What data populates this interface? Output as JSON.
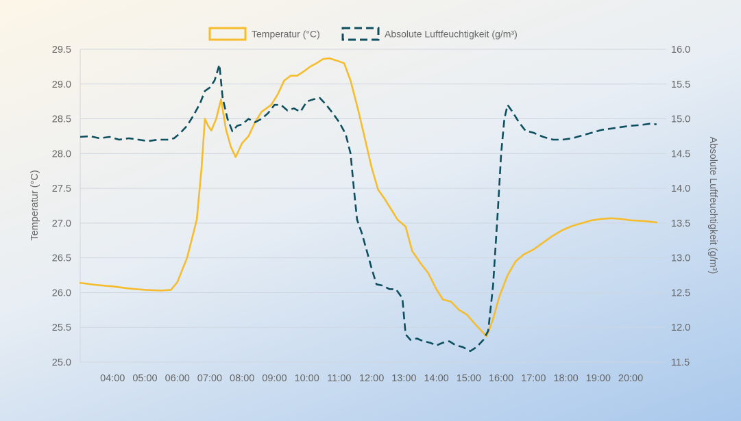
{
  "chart_data": {
    "type": "line",
    "title": "",
    "legend_position": "top",
    "grid": true,
    "colors": {
      "temperature": "#f5bd2e",
      "humidity": "#0d4f5e"
    },
    "x_axis": {
      "min": 3.0,
      "max": 21.1,
      "ticks": [
        {
          "v": 4,
          "label": "04:00"
        },
        {
          "v": 5,
          "label": "05:00"
        },
        {
          "v": 6,
          "label": "06:00"
        },
        {
          "v": 7,
          "label": "07:00"
        },
        {
          "v": 8,
          "label": "08:00"
        },
        {
          "v": 9,
          "label": "09:00"
        },
        {
          "v": 10,
          "label": "10:00"
        },
        {
          "v": 11,
          "label": "11:00"
        },
        {
          "v": 12,
          "label": "12:00"
        },
        {
          "v": 13,
          "label": "13:00"
        },
        {
          "v": 14,
          "label": "14:00"
        },
        {
          "v": 15,
          "label": "15:00"
        },
        {
          "v": 16,
          "label": "16:00"
        },
        {
          "v": 17,
          "label": "17:00"
        },
        {
          "v": 18,
          "label": "18:00"
        },
        {
          "v": 19,
          "label": "19:00"
        },
        {
          "v": 20,
          "label": "20:00"
        }
      ]
    },
    "y_left": {
      "label": "Temperatur (°C)",
      "min": 25.0,
      "max": 29.5,
      "ticks": [
        "25.0",
        "25.5",
        "26.0",
        "26.5",
        "27.0",
        "27.5",
        "28.0",
        "28.5",
        "29.0",
        "29.5"
      ]
    },
    "y_right": {
      "label": "Absolute Luftfeuchtigkeit (g/m³)",
      "min": 11.5,
      "max": 16.0,
      "ticks": [
        "11.5",
        "12.0",
        "12.5",
        "13.0",
        "13.5",
        "14.0",
        "14.5",
        "15.0",
        "15.5",
        "16.0"
      ]
    },
    "series": [
      {
        "name": "Temperatur (°C)",
        "axis": "left",
        "style": "solid",
        "points": [
          [
            3.0,
            26.14
          ],
          [
            3.5,
            26.11
          ],
          [
            4.0,
            26.09
          ],
          [
            4.5,
            26.06
          ],
          [
            5.0,
            26.04
          ],
          [
            5.5,
            26.03
          ],
          [
            5.8,
            26.04
          ],
          [
            6.0,
            26.15
          ],
          [
            6.3,
            26.5
          ],
          [
            6.6,
            27.05
          ],
          [
            6.75,
            27.8
          ],
          [
            6.85,
            28.5
          ],
          [
            6.95,
            28.4
          ],
          [
            7.05,
            28.33
          ],
          [
            7.2,
            28.5
          ],
          [
            7.35,
            28.78
          ],
          [
            7.5,
            28.35
          ],
          [
            7.65,
            28.1
          ],
          [
            7.8,
            27.95
          ],
          [
            8.0,
            28.15
          ],
          [
            8.2,
            28.25
          ],
          [
            8.4,
            28.45
          ],
          [
            8.6,
            28.6
          ],
          [
            8.9,
            28.7
          ],
          [
            9.1,
            28.85
          ],
          [
            9.3,
            29.05
          ],
          [
            9.5,
            29.12
          ],
          [
            9.7,
            29.12
          ],
          [
            9.9,
            29.18
          ],
          [
            10.1,
            29.25
          ],
          [
            10.3,
            29.3
          ],
          [
            10.5,
            29.36
          ],
          [
            10.7,
            29.37
          ],
          [
            10.9,
            29.34
          ],
          [
            11.15,
            29.3
          ],
          [
            11.35,
            29.05
          ],
          [
            11.6,
            28.6
          ],
          [
            11.8,
            28.2
          ],
          [
            12.0,
            27.8
          ],
          [
            12.2,
            27.48
          ],
          [
            12.4,
            27.35
          ],
          [
            12.6,
            27.2
          ],
          [
            12.8,
            27.05
          ],
          [
            13.05,
            26.95
          ],
          [
            13.25,
            26.6
          ],
          [
            13.5,
            26.43
          ],
          [
            13.75,
            26.28
          ],
          [
            14.0,
            26.05
          ],
          [
            14.2,
            25.9
          ],
          [
            14.45,
            25.87
          ],
          [
            14.7,
            25.75
          ],
          [
            14.95,
            25.68
          ],
          [
            15.15,
            25.57
          ],
          [
            15.35,
            25.47
          ],
          [
            15.55,
            25.37
          ],
          [
            15.75,
            25.62
          ],
          [
            15.95,
            25.95
          ],
          [
            16.2,
            26.25
          ],
          [
            16.45,
            26.45
          ],
          [
            16.7,
            26.55
          ],
          [
            17.0,
            26.62
          ],
          [
            17.3,
            26.72
          ],
          [
            17.6,
            26.82
          ],
          [
            17.9,
            26.9
          ],
          [
            18.2,
            26.96
          ],
          [
            18.5,
            27.0
          ],
          [
            18.8,
            27.04
          ],
          [
            19.1,
            27.06
          ],
          [
            19.4,
            27.07
          ],
          [
            19.7,
            27.06
          ],
          [
            20.0,
            27.04
          ],
          [
            20.4,
            27.03
          ],
          [
            20.8,
            27.01
          ]
        ]
      },
      {
        "name": "Absolute Luftfeuchtigkeit (g/m³)",
        "axis": "right",
        "style": "dashed",
        "points": [
          [
            3.0,
            14.74
          ],
          [
            3.3,
            14.75
          ],
          [
            3.6,
            14.72
          ],
          [
            3.9,
            14.74
          ],
          [
            4.2,
            14.7
          ],
          [
            4.5,
            14.72
          ],
          [
            4.8,
            14.7
          ],
          [
            5.1,
            14.68
          ],
          [
            5.4,
            14.7
          ],
          [
            5.7,
            14.7
          ],
          [
            5.9,
            14.72
          ],
          [
            6.1,
            14.8
          ],
          [
            6.3,
            14.9
          ],
          [
            6.5,
            15.05
          ],
          [
            6.7,
            15.22
          ],
          [
            6.85,
            15.4
          ],
          [
            7.0,
            15.45
          ],
          [
            7.15,
            15.55
          ],
          [
            7.3,
            15.78
          ],
          [
            7.4,
            15.3
          ],
          [
            7.55,
            15.0
          ],
          [
            7.7,
            14.82
          ],
          [
            7.85,
            14.9
          ],
          [
            8.0,
            14.92
          ],
          [
            8.2,
            15.0
          ],
          [
            8.4,
            14.95
          ],
          [
            8.6,
            15.0
          ],
          [
            8.8,
            15.08
          ],
          [
            9.0,
            15.2
          ],
          [
            9.2,
            15.2
          ],
          [
            9.4,
            15.12
          ],
          [
            9.6,
            15.15
          ],
          [
            9.8,
            15.1
          ],
          [
            10.0,
            15.25
          ],
          [
            10.2,
            15.28
          ],
          [
            10.4,
            15.3
          ],
          [
            10.6,
            15.2
          ],
          [
            10.8,
            15.08
          ],
          [
            11.0,
            14.95
          ],
          [
            11.2,
            14.78
          ],
          [
            11.35,
            14.5
          ],
          [
            11.45,
            14.0
          ],
          [
            11.55,
            13.55
          ],
          [
            11.7,
            13.35
          ],
          [
            11.85,
            13.1
          ],
          [
            12.0,
            12.85
          ],
          [
            12.15,
            12.62
          ],
          [
            12.35,
            12.6
          ],
          [
            12.55,
            12.55
          ],
          [
            12.75,
            12.55
          ],
          [
            12.95,
            12.42
          ],
          [
            13.05,
            11.9
          ],
          [
            13.2,
            11.82
          ],
          [
            13.4,
            11.84
          ],
          [
            13.6,
            11.8
          ],
          [
            13.8,
            11.78
          ],
          [
            14.0,
            11.74
          ],
          [
            14.2,
            11.78
          ],
          [
            14.4,
            11.8
          ],
          [
            14.6,
            11.74
          ],
          [
            14.8,
            11.72
          ],
          [
            15.05,
            11.66
          ],
          [
            15.25,
            11.72
          ],
          [
            15.45,
            11.82
          ],
          [
            15.6,
            11.95
          ],
          [
            15.75,
            12.6
          ],
          [
            15.9,
            13.7
          ],
          [
            16.0,
            14.5
          ],
          [
            16.1,
            15.0
          ],
          [
            16.2,
            15.2
          ],
          [
            16.35,
            15.1
          ],
          [
            16.55,
            14.95
          ],
          [
            16.75,
            14.83
          ],
          [
            17.0,
            14.8
          ],
          [
            17.3,
            14.74
          ],
          [
            17.6,
            14.7
          ],
          [
            17.9,
            14.7
          ],
          [
            18.2,
            14.72
          ],
          [
            18.5,
            14.76
          ],
          [
            18.8,
            14.8
          ],
          [
            19.1,
            14.84
          ],
          [
            19.4,
            14.86
          ],
          [
            19.7,
            14.88
          ],
          [
            20.0,
            14.9
          ],
          [
            20.3,
            14.91
          ],
          [
            20.6,
            14.93
          ],
          [
            20.8,
            14.92
          ]
        ]
      }
    ]
  }
}
